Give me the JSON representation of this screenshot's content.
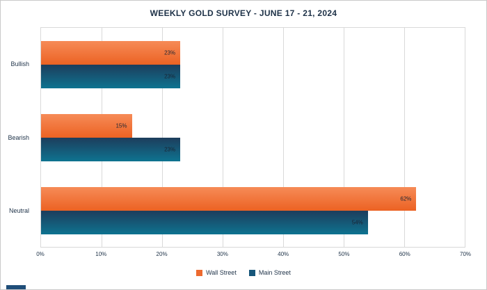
{
  "frame": {
    "background": "#ffffff",
    "border_color": "#c9c9c9",
    "corner_accent_color": "#1f4e79"
  },
  "chart_data": {
    "type": "bar",
    "orientation": "horizontal",
    "title": "WEEKLY GOLD SURVEY - JUNE 17 - 21, 2024",
    "title_color": "#1d3147",
    "categories": [
      "Bullish",
      "Bearish",
      "Neutral"
    ],
    "series": [
      {
        "name": "Wall Street",
        "values": [
          23,
          15,
          62
        ],
        "color_top": "#f68b57",
        "color_bottom": "#ec6223",
        "swatch": "#ed6a2f"
      },
      {
        "name": "Main Street",
        "values": [
          23,
          23,
          54
        ],
        "color_top": "#1d3d5c",
        "color_bottom": "#0e7390",
        "swatch": "#16567a"
      }
    ],
    "value_label_suffix": "%",
    "value_label_color": "#1a2433",
    "xlim": [
      0,
      70
    ],
    "xticks": [
      "0%",
      "10%",
      "20%",
      "30%",
      "40%",
      "50%",
      "60%",
      "70%"
    ],
    "grid": true,
    "gridline_color": "#d9d9d9",
    "axis_text_color": "#1d3147",
    "legend_position": "bottom",
    "legend": [
      "Wall Street",
      "Main Street"
    ]
  }
}
